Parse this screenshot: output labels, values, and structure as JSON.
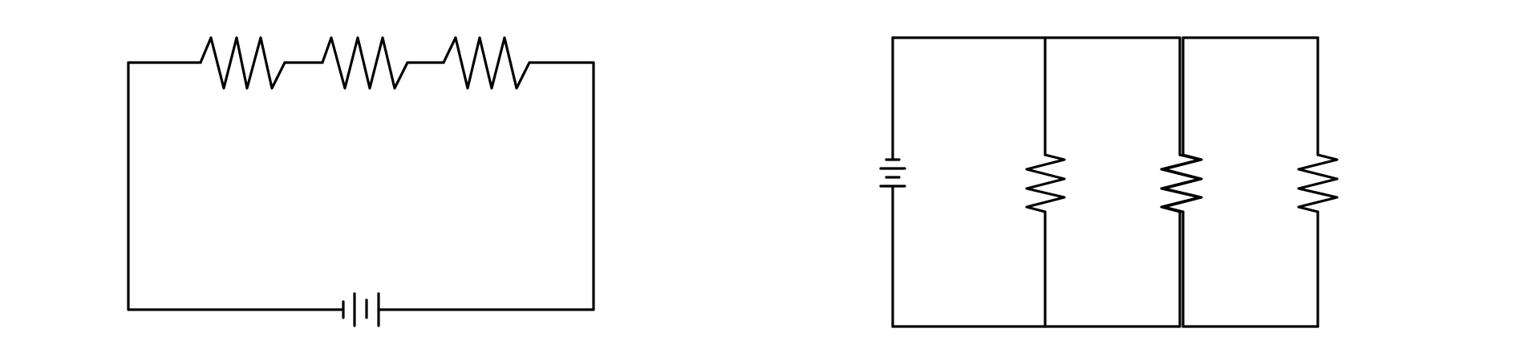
{
  "diagram": {
    "description_visible_text": [],
    "stroke_color": "#000000",
    "background_color": "#ffffff",
    "circuits": [
      {
        "id": "series",
        "components": [
          {
            "type": "battery",
            "count": 1
          },
          {
            "type": "resistor",
            "count": 3
          }
        ]
      },
      {
        "id": "parallel",
        "components": [
          {
            "type": "battery",
            "count": 1
          },
          {
            "type": "resistor",
            "count": 3
          }
        ]
      }
    ]
  }
}
